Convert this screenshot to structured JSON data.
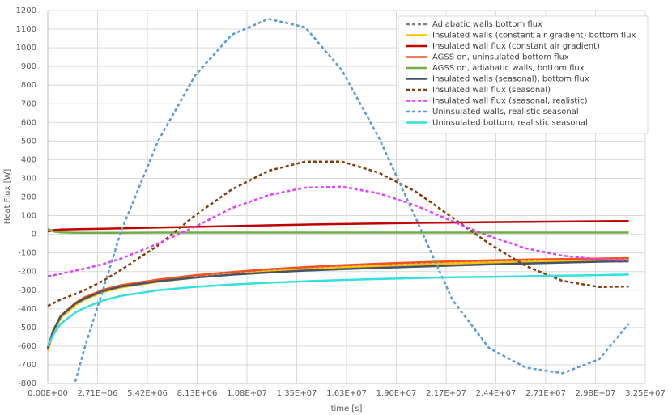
{
  "chart_data": {
    "type": "line",
    "x_label": "time [s]",
    "y_label": "Heat Flux [W]",
    "xlim": [
      0,
      32500000
    ],
    "xticks": [
      {
        "value": 0,
        "label": "0.00E+00"
      },
      {
        "value": 2708333,
        "label": "2.71E+06"
      },
      {
        "value": 5416667,
        "label": "5.42E+06"
      },
      {
        "value": 8125000,
        "label": "8.13E+06"
      },
      {
        "value": 10833333,
        "label": "1.08E+07"
      },
      {
        "value": 13541667,
        "label": "1.35E+07"
      },
      {
        "value": 16250000,
        "label": "1.63E+07"
      },
      {
        "value": 18958333,
        "label": "1.90E+07"
      },
      {
        "value": 21666667,
        "label": "2.17E+07"
      },
      {
        "value": 24375000,
        "label": "2.44E+07"
      },
      {
        "value": 27083333,
        "label": "2.71E+07"
      },
      {
        "value": 29791667,
        "label": "2.98E+07"
      },
      {
        "value": 32500000,
        "label": "3.25E+07"
      }
    ],
    "ylim": [
      -800,
      1200
    ],
    "yticks": [
      -800,
      -700,
      -600,
      -500,
      -400,
      -300,
      -200,
      -100,
      0,
      100,
      200,
      300,
      400,
      500,
      600,
      700,
      800,
      900,
      1000,
      1100,
      1200
    ],
    "grid": true,
    "legend": "top-right",
    "x": [
      0,
      300000,
      700000,
      1500000,
      2000000,
      3000000,
      4000000,
      6000000,
      8000000,
      10000000,
      12000000,
      14000000,
      16000000,
      18000000,
      20000000,
      22000000,
      24000000,
      26000000,
      28000000,
      30000000,
      31600000
    ],
    "series": [
      {
        "name": "Adiabatic walls bottom flux",
        "color": "#7f7f7f",
        "dashed": true,
        "values": [
          -620,
          -520,
          -440,
          -370,
          -340,
          -300,
          -275,
          -245,
          -222,
          -205,
          -190,
          -178,
          -168,
          -160,
          -153,
          -147,
          -142,
          -138,
          -135,
          -132,
          -130
        ]
      },
      {
        "name": "Insulated walls (constant air gradient) bottom flux",
        "color": "#ffc000",
        "dashed": false,
        "values": [
          -625,
          -530,
          -450,
          -380,
          -350,
          -310,
          -285,
          -255,
          -232,
          -215,
          -200,
          -188,
          -178,
          -170,
          -163,
          -157,
          -152,
          -148,
          -145,
          -142,
          -140
        ]
      },
      {
        "name": "Insulated wall flux (constant air gradient)",
        "color": "#c00000",
        "dashed": false,
        "values": [
          15,
          22,
          25,
          27,
          28,
          30,
          32,
          36,
          40,
          44,
          48,
          52,
          55,
          58,
          61,
          63,
          65,
          67,
          68,
          70,
          71
        ]
      },
      {
        "name": "AGSS on, uninsulated bottom flux",
        "color": "#f4511e",
        "dashed": false,
        "values": [
          -615,
          -518,
          -438,
          -368,
          -338,
          -298,
          -273,
          -243,
          -220,
          -203,
          -188,
          -176,
          -166,
          -158,
          -151,
          -145,
          -140,
          -136,
          -133,
          -130,
          -128
        ]
      },
      {
        "name": "AGSS on, adiabatic walls, bottom flux",
        "color": "#70ad47",
        "dashed": false,
        "values": [
          30,
          15,
          10,
          8,
          8,
          8,
          8,
          9,
          9,
          9,
          9,
          9,
          9,
          9,
          9,
          9,
          9,
          9,
          9,
          9,
          9
        ]
      },
      {
        "name": "Insulated walls (seasonal), bottom flux",
        "color": "#44546a",
        "dashed": false,
        "values": [
          -610,
          -515,
          -440,
          -372,
          -345,
          -305,
          -280,
          -252,
          -232,
          -217,
          -205,
          -195,
          -187,
          -180,
          -174,
          -168,
          -162,
          -157,
          -152,
          -147,
          -145
        ]
      },
      {
        "name": "Insulated wall flux (seasonal)",
        "color": "#843c0c",
        "dashed": true,
        "values": [
          -385,
          -370,
          -350,
          -320,
          -300,
          -250,
          -190,
          -60,
          100,
          240,
          340,
          390,
          390,
          330,
          230,
          90,
          -50,
          -170,
          -250,
          -283,
          -280
        ]
      },
      {
        "name": "Insulated wall flux (seasonal, realistic)",
        "color": "#e040fb",
        "dashed": true,
        "values": [
          -225,
          -220,
          -212,
          -195,
          -185,
          -160,
          -130,
          -50,
          40,
          140,
          210,
          250,
          255,
          220,
          155,
          70,
          -10,
          -75,
          -115,
          -135,
          -140
        ]
      },
      {
        "name": "Uninsulated walls, realistic seasonal",
        "color": "#5b9bd5",
        "dashed": true,
        "values": [
          null,
          null,
          null,
          -790,
          -610,
          -300,
          20,
          500,
          850,
          1070,
          1155,
          1110,
          880,
          520,
          90,
          -350,
          -610,
          -715,
          -745,
          -670,
          -480
        ]
      },
      {
        "name": "Uninsulated bottom, realistic seasonal",
        "color": "#33e0e0",
        "dashed": false,
        "values": [
          -600,
          -540,
          -480,
          -420,
          -395,
          -355,
          -330,
          -300,
          -282,
          -270,
          -260,
          -252,
          -245,
          -240,
          -235,
          -231,
          -228,
          -225,
          -222,
          -219,
          -216
        ]
      }
    ]
  }
}
